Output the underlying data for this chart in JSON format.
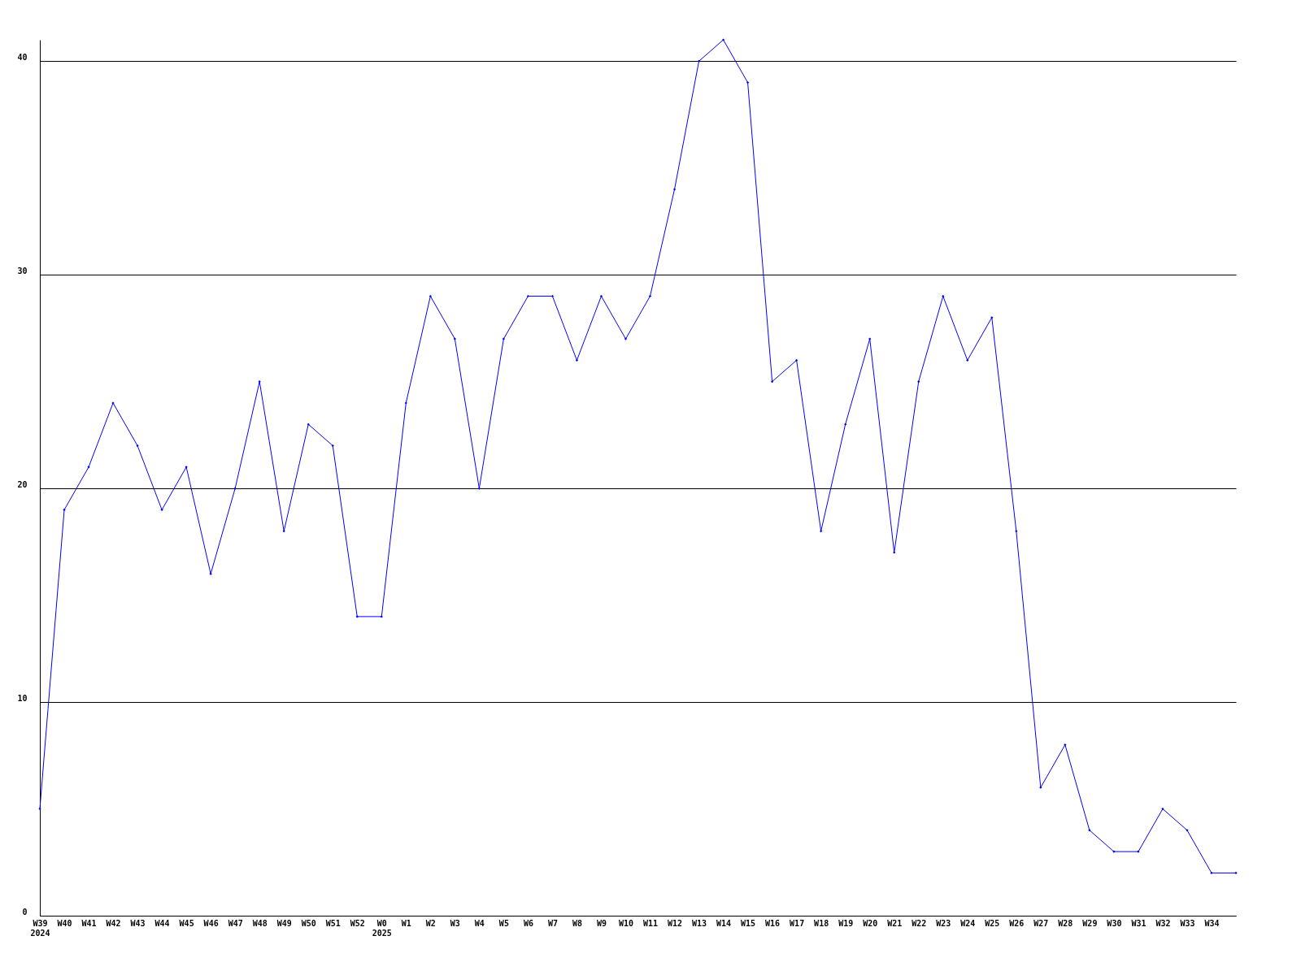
{
  "chart_data": {
    "type": "line",
    "categories": [
      "W39\n2024",
      "W40",
      "W41",
      "W42",
      "W43",
      "W44",
      "W45",
      "W46",
      "W47",
      "W48",
      "W49",
      "W50",
      "W51",
      "W52",
      "W0\n2025",
      "W1",
      "W2",
      "W3",
      "W4",
      "W5",
      "W6",
      "W7",
      "W8",
      "W9",
      "W10",
      "W11",
      "W12",
      "W13",
      "W14",
      "W15",
      "W16",
      "W17",
      "W18",
      "W19",
      "W20",
      "W21",
      "W22",
      "W23",
      "W24",
      "W25",
      "W26",
      "W27",
      "W28",
      "W29",
      "W30",
      "W31",
      "W32",
      "W33",
      "W34",
      null
    ],
    "series": [
      {
        "color": "#0000ff",
        "values": [
          5,
          19,
          21,
          24,
          22,
          19,
          21,
          16,
          20,
          25,
          18,
          23,
          22,
          14,
          14,
          24,
          29,
          27,
          20,
          27,
          29,
          29,
          26,
          29,
          27,
          29,
          34,
          40,
          41,
          39,
          25,
          26,
          18,
          23,
          27,
          17,
          25,
          29,
          26,
          28,
          18,
          6,
          8,
          4,
          3,
          3,
          5,
          4,
          2,
          2
        ]
      }
    ],
    "ylim": [
      0,
      41
    ],
    "yticks": [
      0,
      10,
      20,
      30,
      40
    ],
    "grid": "y",
    "marker": "diamond",
    "line_style": "solid",
    "legend": false
  }
}
